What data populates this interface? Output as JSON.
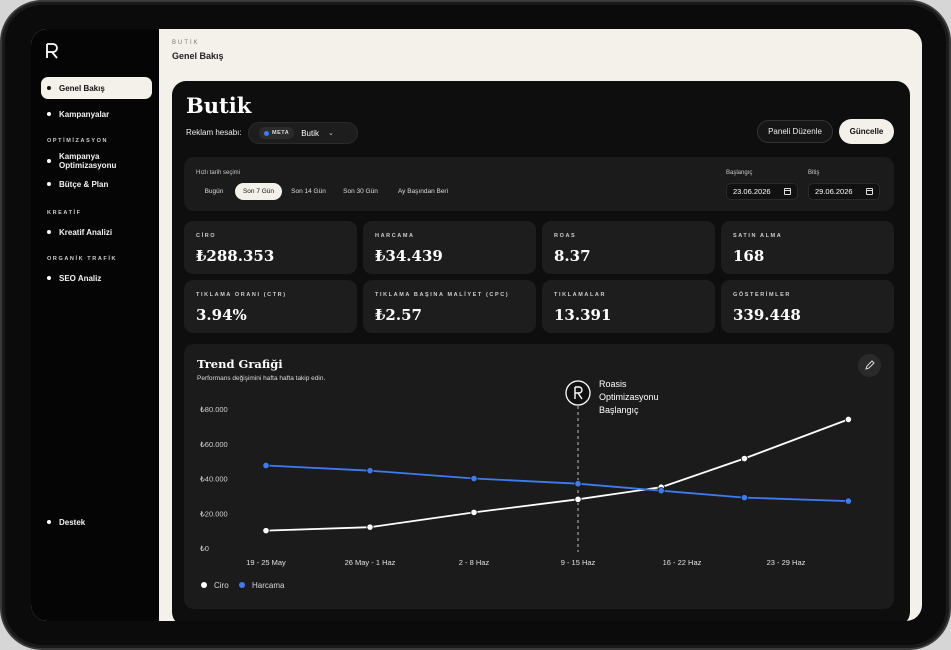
{
  "sidebar": {
    "items": [
      {
        "label": "Genel Bakış",
        "active": true
      },
      {
        "label": "Kampanyalar"
      },
      {
        "label": "Kampanya Optimizasyonu"
      },
      {
        "label": "Bütçe & Plan"
      },
      {
        "label": "Kreatif Analizi"
      },
      {
        "label": "SEO Analiz"
      },
      {
        "label": "Destek"
      }
    ],
    "sections": [
      "OPTİMİZASYON",
      "KREATİF",
      "ORGANİK TRAFİK"
    ]
  },
  "topbar": {
    "breadcrumb": "BUTİK",
    "title": "Genel Bakış"
  },
  "header": {
    "title": "Butik",
    "ad_account_label": "Reklam hesabı:",
    "ad_platform": "META",
    "ad_account": "Butik",
    "edit_button": "Paneli Düzenle",
    "update_button": "Güncelle"
  },
  "dates": {
    "quick_label": "Hızlı tarih seçimi",
    "quick_options": [
      "Bugün",
      "Son 7 Gün",
      "Son 14 Gün",
      "Son 30 Gün",
      "Ay Başından Beri"
    ],
    "quick_selected": "Son 7 Gün",
    "start_label": "Başlangıç",
    "start_value": "23.06.2026",
    "end_label": "Bitiş",
    "end_value": "29.06.2026"
  },
  "metrics": [
    {
      "label": "CİRO",
      "value": "₺288.353"
    },
    {
      "label": "HARCAMA",
      "value": "₺34.439"
    },
    {
      "label": "ROAS",
      "value": "8.37"
    },
    {
      "label": "SATIN ALMA",
      "value": "168"
    },
    {
      "label": "TIKLAMA ORANI (CTR)",
      "value": "3.94%"
    },
    {
      "label": "TIKLAMA BAŞINA MALİYET (CPC)",
      "value": "₺2.57"
    },
    {
      "label": "TIKLAMALAR",
      "value": "13.391"
    },
    {
      "label": "GÖSTERİMLER",
      "value": "339.448"
    }
  ],
  "trend": {
    "title": "Trend Grafiği",
    "subtitle": "Performans değişimini hafta hafta takip edin.",
    "marker_lines": [
      "Roasis",
      "Optimizasyonu",
      "Başlangıç"
    ]
  },
  "chart_data": {
    "type": "line",
    "x": [
      "19 - 25 May",
      "26 May - 1 Haz",
      "2 - 8 Haz",
      "9 - 15 Haz",
      "16 - 22 Haz",
      "23 - 29 Haz"
    ],
    "x_positions": [
      0,
      1,
      2,
      3,
      4,
      5
    ],
    "y_ticks": [
      "₺0",
      "₺20.000",
      "₺40.000",
      "₺60.000",
      "₺80.000"
    ],
    "ylim": [
      0,
      80000
    ],
    "series": [
      {
        "name": "Ciro",
        "color": "#ffffff",
        "points": [
          [
            0,
            10000
          ],
          [
            1,
            12000
          ],
          [
            2,
            20500
          ],
          [
            3,
            28000
          ],
          [
            3.8,
            35000
          ],
          [
            4.6,
            51500
          ],
          [
            5.6,
            74000
          ]
        ]
      },
      {
        "name": "Harcama",
        "color": "#3d7cf0",
        "points": [
          [
            0,
            47500
          ],
          [
            1,
            44500
          ],
          [
            2,
            40000
          ],
          [
            3,
            37000
          ],
          [
            3.8,
            33000
          ],
          [
            4.6,
            29000
          ],
          [
            5.6,
            27000
          ]
        ]
      }
    ],
    "annotation": {
      "x": 3,
      "text": "Roasis Optimizasyonu Başlangıç"
    },
    "legend": "bottom-left",
    "grid": false
  }
}
